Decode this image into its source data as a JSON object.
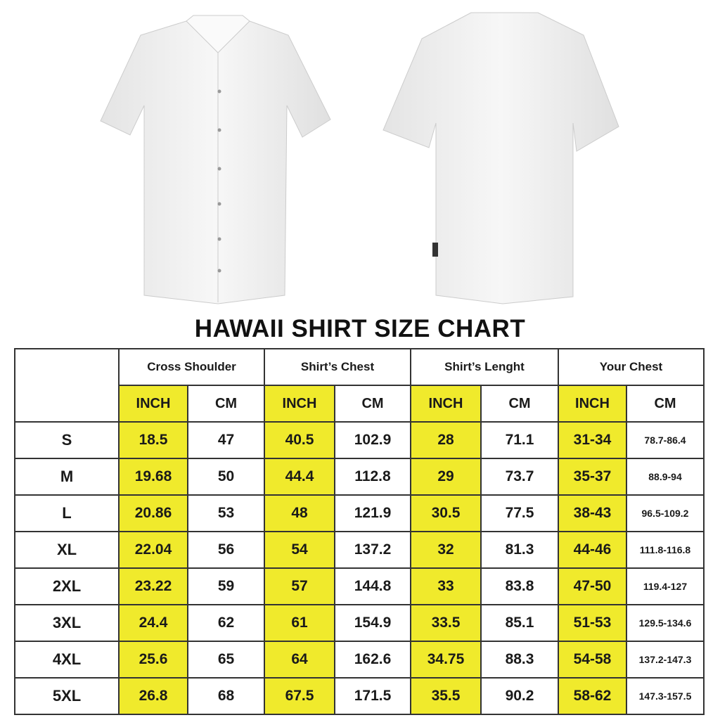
{
  "title": "HAWAII SHIRT SIZE CHART",
  "colors": {
    "highlight": "#f0ea2c",
    "border": "#333333",
    "shirt": "#f2f2f2"
  },
  "images": [
    "shirt-front-icon",
    "shirt-back-icon"
  ],
  "groups": [
    "Cross Shoulder",
    "Shirt’s Chest",
    "Shirt’s Lenght",
    "Your Chest"
  ],
  "units": [
    "INCH",
    "CM"
  ],
  "rows": [
    {
      "size": "S",
      "values": [
        "18.5",
        "47",
        "40.5",
        "102.9",
        "28",
        "71.1",
        "31-34",
        "78.7-86.4"
      ]
    },
    {
      "size": "M",
      "values": [
        "19.68",
        "50",
        "44.4",
        "112.8",
        "29",
        "73.7",
        "35-37",
        "88.9-94"
      ]
    },
    {
      "size": "L",
      "values": [
        "20.86",
        "53",
        "48",
        "121.9",
        "30.5",
        "77.5",
        "38-43",
        "96.5-109.2"
      ]
    },
    {
      "size": "XL",
      "values": [
        "22.04",
        "56",
        "54",
        "137.2",
        "32",
        "81.3",
        "44-46",
        "111.8-116.8"
      ]
    },
    {
      "size": "2XL",
      "values": [
        "23.22",
        "59",
        "57",
        "144.8",
        "33",
        "83.8",
        "47-50",
        "119.4-127"
      ]
    },
    {
      "size": "3XL",
      "values": [
        "24.4",
        "62",
        "61",
        "154.9",
        "33.5",
        "85.1",
        "51-53",
        "129.5-134.6"
      ]
    },
    {
      "size": "4XL",
      "values": [
        "25.6",
        "65",
        "64",
        "162.6",
        "34.75",
        "88.3",
        "54-58",
        "137.2-147.3"
      ]
    },
    {
      "size": "5XL",
      "values": [
        "26.8",
        "68",
        "67.5",
        "171.5",
        "35.5",
        "90.2",
        "58-62",
        "147.3-157.5"
      ]
    }
  ]
}
